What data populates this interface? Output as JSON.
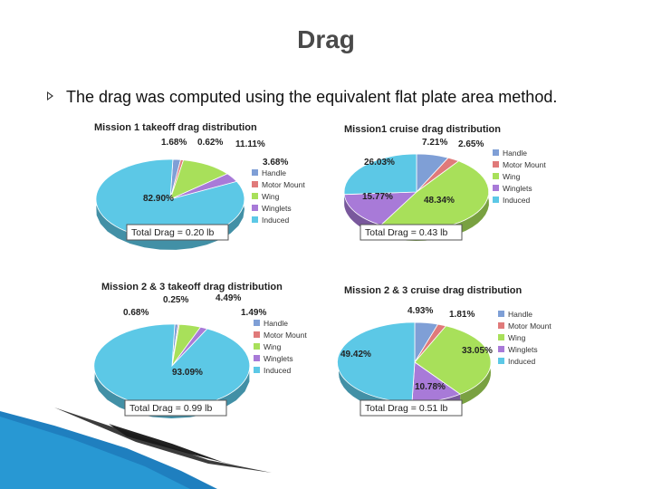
{
  "slide": {
    "title": "Drag",
    "bullet": "The drag was computed using the equivalent flat plate area method."
  },
  "colors": {
    "Handle": "#7f9fd6",
    "Motor Mount": "#e07a7a",
    "Wing": "#a8e05a",
    "Winglets": "#a87ad8",
    "Induced": "#5cc8e6"
  },
  "chart_data": [
    {
      "type": "pie",
      "title": "Mission 1 takeoff drag distribution",
      "categories": [
        "Handle",
        "Motor Mount",
        "Wing",
        "Winglets",
        "Induced"
      ],
      "values": [
        1.68,
        0.62,
        11.11,
        3.68,
        82.9
      ],
      "value_labels": [
        "1.68%",
        "0.62%",
        "11.11%",
        "3.68%",
        "82.90%"
      ],
      "total": "Total Drag = 0.20 lb",
      "legend": "right"
    },
    {
      "type": "pie",
      "title": "Mission1 cruise drag distribution",
      "categories": [
        "Handle",
        "Motor Mount",
        "Wing",
        "Winglets",
        "Induced"
      ],
      "values": [
        7.21,
        2.65,
        48.34,
        15.77,
        26.03
      ],
      "value_labels": [
        "7.21%",
        "2.65%",
        "48.34%",
        "15.77%",
        "26.03%"
      ],
      "total": "Total Drag = 0.43 lb",
      "legend": "right"
    },
    {
      "type": "pie",
      "title": "Mission 2 & 3 takeoff drag distribution",
      "categories": [
        "Handle",
        "Motor Mount",
        "Wing",
        "Winglets",
        "Induced"
      ],
      "values": [
        0.68,
        0.25,
        4.49,
        1.49,
        93.09
      ],
      "value_labels": [
        "0.68%",
        "0.25%",
        "4.49%",
        "1.49%",
        "93.09%"
      ],
      "total": "Total Drag = 0.99 lb",
      "legend": "right"
    },
    {
      "type": "pie",
      "title": "Mission 2 & 3 cruise drag distribution",
      "categories": [
        "Handle",
        "Motor Mount",
        "Wing",
        "Winglets",
        "Induced"
      ],
      "values": [
        4.93,
        1.81,
        33.05,
        10.78,
        49.42
      ],
      "value_labels": [
        "4.93%",
        "1.81%",
        "33.05%",
        "10.78%",
        "49.42%"
      ],
      "total": "Total Drag = 0.51 lb",
      "legend": "right"
    }
  ]
}
